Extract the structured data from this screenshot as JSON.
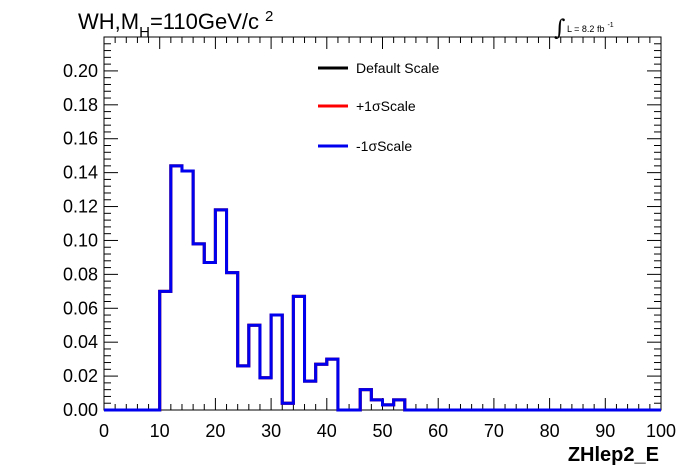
{
  "chart_data": {
    "type": "line",
    "title_parts": {
      "main": "WH,M",
      "sub": "H",
      "rest": "=110GeV/c",
      "sup": "2"
    },
    "lumi": {
      "symbol": "∫",
      "text": "L = 8.2 fb",
      "sup": "-1"
    },
    "xlabel": "ZHlep2_E",
    "ylabel": "",
    "xlim": [
      0,
      100
    ],
    "ylim": [
      0,
      0.22
    ],
    "xticks": [
      "0",
      "10",
      "20",
      "30",
      "40",
      "50",
      "60",
      "70",
      "80",
      "90",
      "100"
    ],
    "yticks": [
      "0.00",
      "0.02",
      "0.04",
      "0.06",
      "0.08",
      "0.10",
      "0.12",
      "0.14",
      "0.16",
      "0.18",
      "0.20"
    ],
    "bin_width": 2,
    "bin_edges_start": 0,
    "grid": false,
    "legend_position": "top-center",
    "series": [
      {
        "name": "Default Scale",
        "color": "#000000",
        "values": [
          0,
          0,
          0,
          0,
          0,
          0.07,
          0.144,
          0.141,
          0.098,
          0.087,
          0.118,
          0.081,
          0.026,
          0.05,
          0.019,
          0.056,
          0.004,
          0.067,
          0.017,
          0.027,
          0.03,
          0.0,
          0.0,
          0.012,
          0.006,
          0.003,
          0.006,
          0,
          0,
          0,
          0,
          0,
          0,
          0,
          0,
          0,
          0,
          0,
          0,
          0,
          0,
          0,
          0,
          0,
          0,
          0,
          0,
          0,
          0,
          0
        ]
      },
      {
        "name": "+1σScale",
        "color": "#ff0000",
        "values": [
          0,
          0,
          0,
          0,
          0,
          0.07,
          0.144,
          0.141,
          0.098,
          0.087,
          0.118,
          0.081,
          0.026,
          0.05,
          0.019,
          0.056,
          0.004,
          0.067,
          0.017,
          0.027,
          0.03,
          0.0,
          0.0,
          0.012,
          0.006,
          0.003,
          0.006,
          0,
          0,
          0,
          0,
          0,
          0,
          0,
          0,
          0,
          0,
          0,
          0,
          0,
          0,
          0,
          0,
          0,
          0,
          0,
          0,
          0,
          0,
          0
        ]
      },
      {
        "name": "-1σScale",
        "color": "#0000ee",
        "values": [
          0,
          0,
          0,
          0,
          0,
          0.07,
          0.144,
          0.141,
          0.098,
          0.087,
          0.118,
          0.081,
          0.026,
          0.05,
          0.019,
          0.056,
          0.004,
          0.067,
          0.017,
          0.027,
          0.03,
          0.0,
          0.0,
          0.012,
          0.006,
          0.003,
          0.006,
          0,
          0,
          0,
          0,
          0,
          0,
          0,
          0,
          0,
          0,
          0,
          0,
          0,
          0,
          0,
          0,
          0,
          0,
          0,
          0,
          0,
          0,
          0
        ]
      }
    ]
  }
}
